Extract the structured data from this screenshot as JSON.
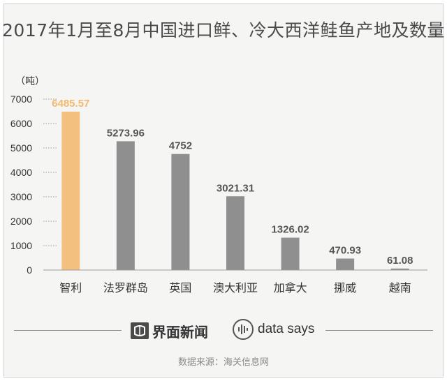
{
  "chart_data": {
    "type": "bar",
    "title": "2017年1月至8月中国进口鲜、冷大西洋鲑鱼产地及数量",
    "ylabel": "（吨）",
    "categories": [
      "智利",
      "法罗群岛",
      "英国",
      "澳大利亚",
      "加拿大",
      "挪威",
      "越南"
    ],
    "values": [
      6485.57,
      5273.96,
      4752,
      3021.31,
      1326.02,
      470.93,
      61.08
    ],
    "value_labels": [
      "6485.57",
      "5273.96",
      "4752",
      "3021.31",
      "1326.02",
      "470.93",
      "61.08"
    ],
    "yticks": [
      "0",
      "1000",
      "2000",
      "3000",
      "4000",
      "5000",
      "6000",
      "7000"
    ],
    "ylim": [
      0,
      7000
    ],
    "highlight_index": 0,
    "colors": {
      "highlight": "#f4c07f",
      "bar": "#8f8f8f",
      "highlight_label": "#f2b96e",
      "label": "#555555"
    },
    "grid": "dotted stubs at y ticks",
    "legend": "none"
  },
  "footer": {
    "brand_cn": "界面新闻",
    "brand_en": "data says",
    "source": "数据来源：海关信息网"
  }
}
